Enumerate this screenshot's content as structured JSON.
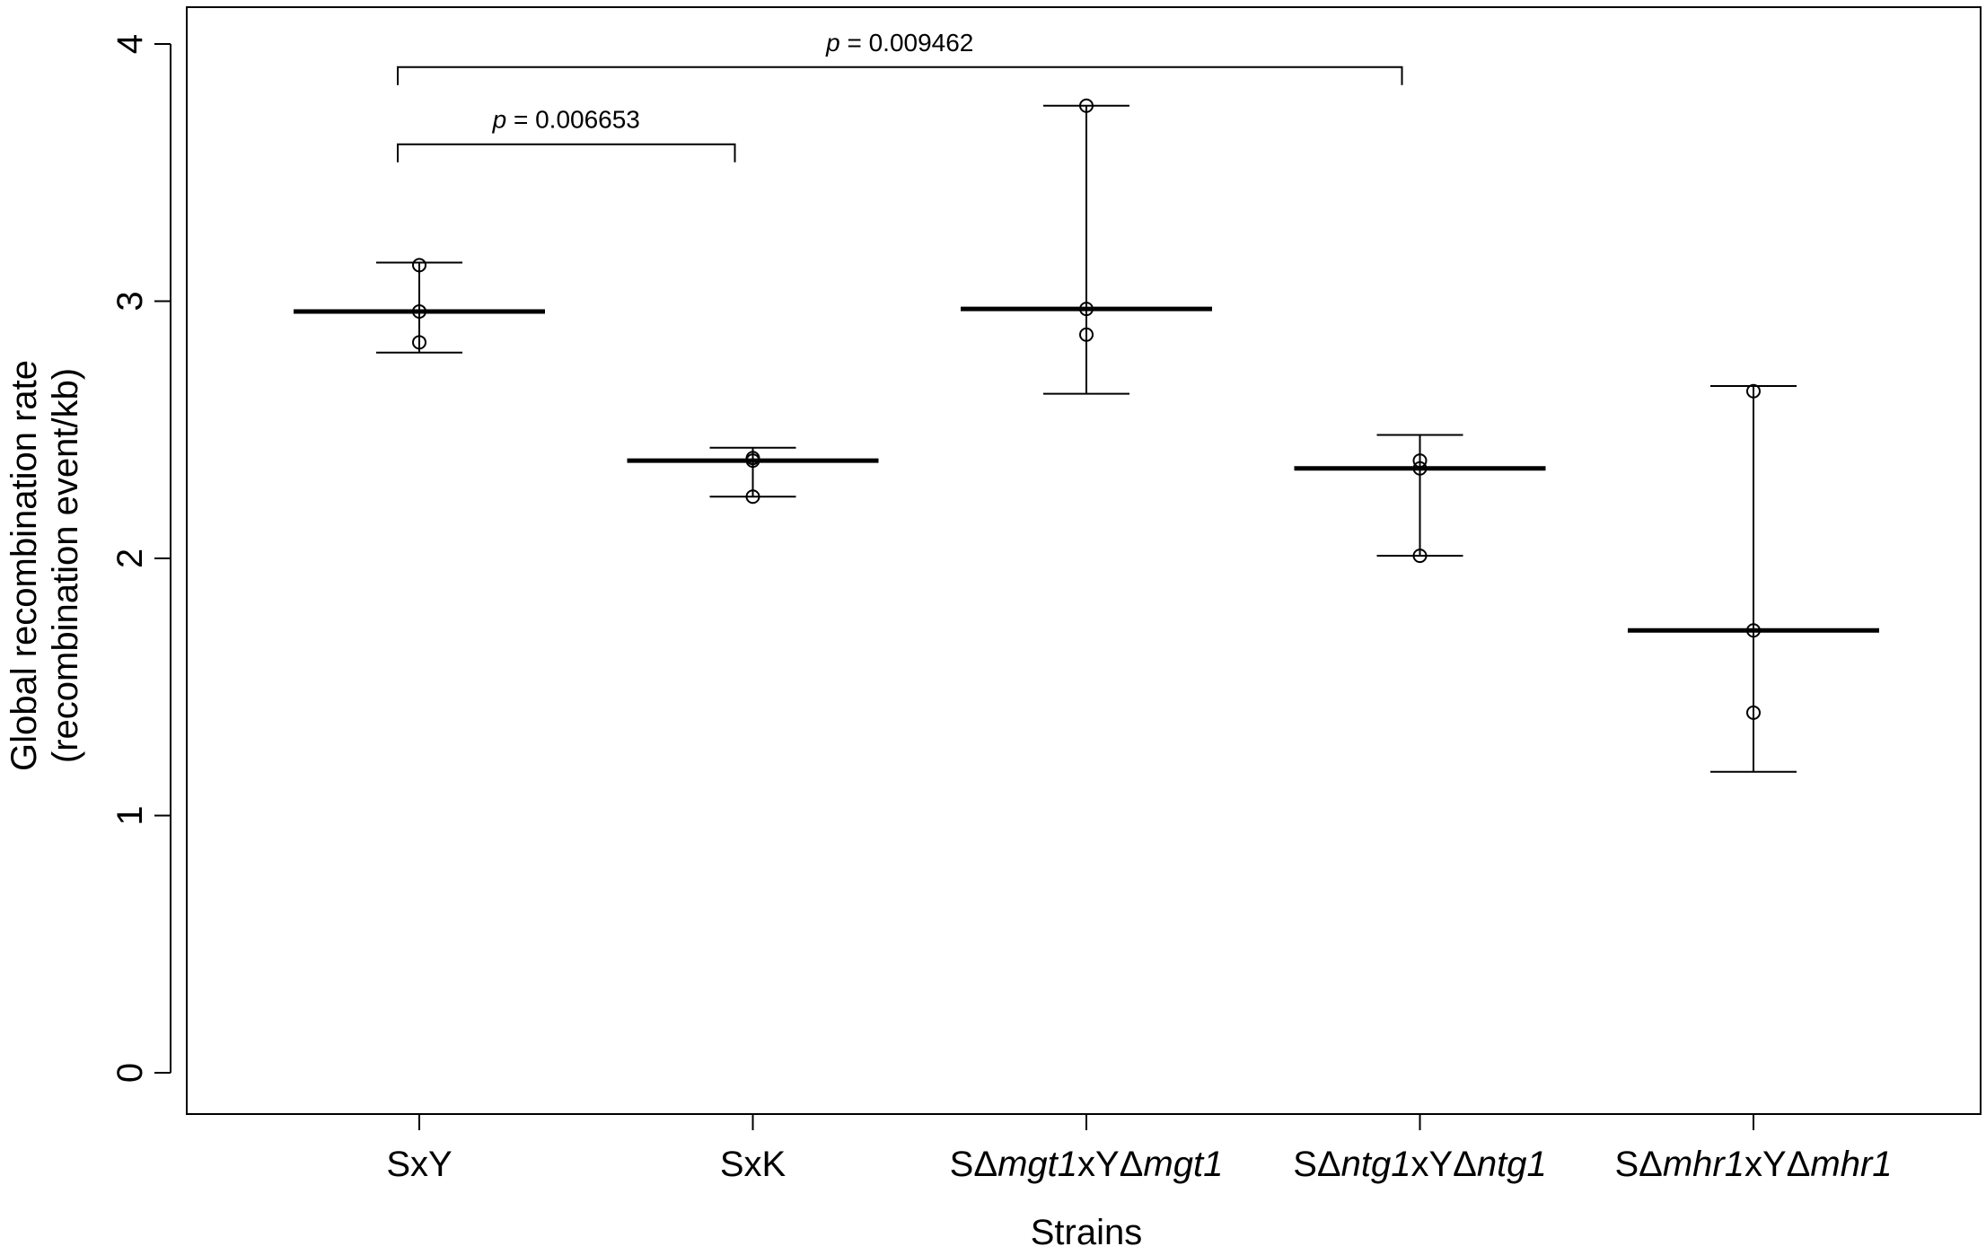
{
  "chart_data": {
    "type": "scatter",
    "xlabel": "Strains",
    "ylabel_lines": [
      "Global recombination rate",
      "(recombination event/kb)"
    ],
    "ylim": [
      0,
      4
    ],
    "yticks": [
      "0",
      "1",
      "2",
      "3",
      "4"
    ],
    "categories": [
      {
        "parts": [
          {
            "t": "SxY",
            "i": false
          }
        ]
      },
      {
        "parts": [
          {
            "t": "SxK",
            "i": false
          }
        ]
      },
      {
        "parts": [
          {
            "t": "SΔ",
            "i": false
          },
          {
            "t": "mgt1",
            "i": true
          },
          {
            "t": "xYΔ",
            "i": false
          },
          {
            "t": "mgt1",
            "i": true
          }
        ]
      },
      {
        "parts": [
          {
            "t": "SΔ",
            "i": false
          },
          {
            "t": "ntg1",
            "i": true
          },
          {
            "t": "xYΔ",
            "i": false
          },
          {
            "t": "ntg1",
            "i": true
          }
        ]
      },
      {
        "parts": [
          {
            "t": "SΔ",
            "i": false
          },
          {
            "t": "mhr1",
            "i": true
          },
          {
            "t": "xYΔ",
            "i": false
          },
          {
            "t": "mhr1",
            "i": true
          }
        ]
      }
    ],
    "groups": [
      {
        "points": [
          3.14,
          2.96,
          2.84
        ],
        "mean": 2.96,
        "err_low": 2.8,
        "err_high": 3.15
      },
      {
        "points": [
          2.39,
          2.38,
          2.24
        ],
        "mean": 2.38,
        "err_low": 2.24,
        "err_high": 2.43
      },
      {
        "points": [
          3.76,
          2.97,
          2.87
        ],
        "mean": 2.97,
        "err_low": 2.64,
        "err_high": 3.76
      },
      {
        "points": [
          2.38,
          2.35,
          2.01
        ],
        "mean": 2.35,
        "err_low": 2.01,
        "err_high": 2.48
      },
      {
        "points": [
          2.65,
          1.72,
          1.4
        ],
        "mean": 1.72,
        "err_low": 1.17,
        "err_high": 2.67
      }
    ],
    "significance": [
      {
        "from": 0,
        "to": 3,
        "y": 3.91,
        "label_p": "p",
        "label_rest": " = 0.009462"
      },
      {
        "from": 0,
        "to": 1,
        "y": 3.61,
        "label_p": "p",
        "label_rest": " = 0.006653"
      }
    ]
  }
}
